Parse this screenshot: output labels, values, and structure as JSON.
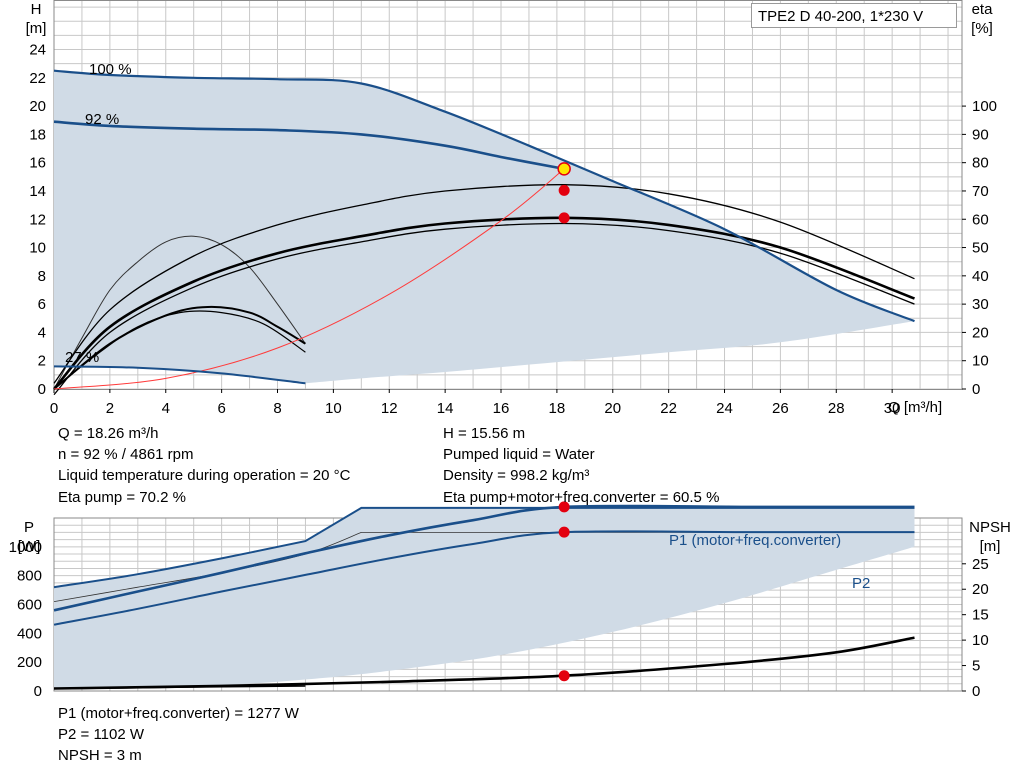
{
  "model": "TPE2 D 40-200, 1*230 V",
  "colors": {
    "grid": "#c8c8c8",
    "curve_blue": "#1a4f8a",
    "fill": "#d0dbe6",
    "eta": "#000000",
    "system": "#ff3b3b",
    "point": "#e3000f",
    "op_point": "#ffe600"
  },
  "top_chart": {
    "y_left_label": [
      "H",
      "[m]"
    ],
    "y_right_label": [
      "eta",
      "[%]"
    ],
    "x_label": "Q [m³/h]",
    "x_ticks": [
      "0",
      "2",
      "4",
      "6",
      "8",
      "10",
      "12",
      "14",
      "16",
      "18",
      "20",
      "22",
      "24",
      "26",
      "28",
      "30"
    ],
    "y_left_ticks": [
      "0",
      "2",
      "4",
      "6",
      "8",
      "10",
      "12",
      "14",
      "16",
      "18",
      "20",
      "22",
      "24"
    ],
    "y_right_ticks": [
      "0",
      "10",
      "20",
      "30",
      "40",
      "50",
      "60",
      "70",
      "80",
      "90",
      "100"
    ],
    "curve_labels": [
      "100 %",
      "92 %",
      "27 %"
    ]
  },
  "info_left": [
    "Q = 18.26 m³/h",
    "n = 92 % / 4861 rpm",
    "Liquid temperature during operation = 20 °C",
    "Eta pump = 70.2 %"
  ],
  "info_right": [
    "H = 15.56 m",
    "Pumped liquid = Water",
    "Density = 998.2 kg/m³",
    "Eta pump+motor+freq.converter = 60.5 %"
  ],
  "bottom_chart": {
    "y_left_label": [
      "P",
      "[W]"
    ],
    "y_right_label": [
      "NPSH",
      "[m]"
    ],
    "y_left_ticks": [
      "0",
      "200",
      "400",
      "600",
      "800",
      "1000"
    ],
    "y_right_ticks": [
      "0",
      "5",
      "10",
      "15",
      "20",
      "25"
    ],
    "series_labels": {
      "p1": "P1 (motor+freq.converter)",
      "p2": "P2"
    }
  },
  "info_bottom": [
    "P1 (motor+freq.converter) = 1277 W",
    "P2 = 1102 W",
    "NPSH = 3 m"
  ],
  "chart_data": [
    {
      "type": "line",
      "title": "TPE2 D 40-200, 1*230 V",
      "xlabel": "Q [m³/h]",
      "ylabel": "H [m]",
      "y2label": "eta [%]",
      "xlim": [
        0,
        32.5
      ],
      "ylim": [
        0,
        27.5
      ],
      "y2lim": [
        0,
        137.5
      ],
      "grid": true,
      "series": [
        {
          "name": "100 %",
          "axis": "H",
          "x": [
            0,
            2,
            5,
            8,
            11,
            14,
            17,
            20,
            24,
            28,
            30.8
          ],
          "y": [
            22.5,
            22.2,
            22.0,
            21.9,
            21.6,
            19.6,
            17.2,
            14.7,
            11.3,
            7.0,
            4.8
          ]
        },
        {
          "name": "92 %",
          "axis": "H",
          "x": [
            0,
            2,
            5,
            8,
            11,
            14,
            16,
            18.26
          ],
          "y": [
            18.9,
            18.6,
            18.4,
            18.3,
            18.0,
            17.2,
            16.4,
            15.56
          ]
        },
        {
          "name": "27 %",
          "axis": "H",
          "x": [
            0,
            3,
            6,
            9
          ],
          "y": [
            1.6,
            1.5,
            1.1,
            0.4
          ]
        },
        {
          "name": "eta pump",
          "axis": "eta",
          "x": [
            0,
            2,
            5,
            8,
            11,
            14,
            18.26,
            22,
            26,
            30.8
          ],
          "y": [
            0,
            26,
            45,
            56,
            63,
            68,
            70.2,
            67,
            57,
            37
          ]
        },
        {
          "name": "eta pump+motor+freq.converter",
          "axis": "eta",
          "x": [
            0,
            2,
            5,
            8,
            11,
            14,
            18.26,
            22,
            26,
            30.8
          ],
          "y": [
            0,
            22,
            38,
            48,
            54,
            58.5,
            60.5,
            58,
            50,
            32
          ]
        },
        {
          "name": "system curve",
          "axis": "H",
          "x": [
            0,
            4,
            8,
            12,
            16,
            18.26
          ],
          "y": [
            0,
            0.75,
            2.9,
            6.7,
            11.9,
            15.56
          ]
        }
      ],
      "operating_point": {
        "Q": 18.26,
        "H": 15.56,
        "eta_pump": 70.2,
        "eta_total": 60.5
      }
    },
    {
      "type": "line",
      "ylabel": "P [W]",
      "y2label": "NPSH [m]",
      "xlim": [
        0,
        32.5
      ],
      "ylim": [
        0,
        1200
      ],
      "y2lim": [
        0,
        34
      ],
      "grid": true,
      "series": [
        {
          "name": "P1 (motor+freq.converter)",
          "axis": "P",
          "x": [
            0,
            3,
            6,
            9,
            12,
            15,
            18.26,
            25,
            30.8
          ],
          "y": [
            560,
            690,
            820,
            955,
            1080,
            1185,
            1277,
            1277,
            1277
          ]
        },
        {
          "name": "P2",
          "axis": "P",
          "x": [
            0,
            3,
            6,
            9,
            12,
            15,
            18.26,
            25,
            30.8
          ],
          "y": [
            460,
            570,
            690,
            805,
            920,
            1020,
            1102,
            1102,
            1102
          ]
        },
        {
          "name": "NPSH",
          "axis": "NPSH",
          "x": [
            0,
            6,
            12,
            18.26,
            24,
            28,
            30.8
          ],
          "y": [
            0.5,
            1.0,
            1.8,
            3.0,
            5.3,
            7.6,
            10.5
          ]
        }
      ],
      "operating_point": {
        "Q": 18.26,
        "P1": 1277,
        "P2": 1102,
        "NPSH": 3
      }
    }
  ]
}
